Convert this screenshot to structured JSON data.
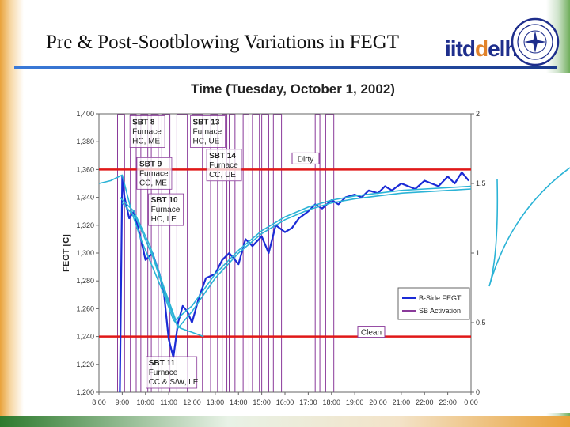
{
  "slide": {
    "title": "Pre & Post-Sootblowing Variations in FEGT",
    "brand_prefix": "iitd",
    "brand_suffix": "elhi"
  },
  "colors": {
    "fegt_line": "#1b2bd6",
    "trend_line": "#2bb3d6",
    "threshold_line": "#e01818",
    "sb_activation": "#8a3a9a"
  },
  "chart_data": {
    "type": "line",
    "title": "Time (Tuesday, October 1, 2002)",
    "ylabel": "FEGT [C]",
    "ylim": [
      1200,
      1400
    ],
    "y2lim": [
      0,
      2
    ],
    "yticks": [
      "1,200",
      "1,220",
      "1,240",
      "1,260",
      "1,280",
      "1,300",
      "1,320",
      "1,340",
      "1,360",
      "1,380",
      "1,400"
    ],
    "y2ticks": [
      "0",
      "0.5",
      "1",
      "1.5",
      "2"
    ],
    "xlim": [
      8,
      24
    ],
    "xticks": [
      "8:00",
      "9:00",
      "10:00",
      "11:00",
      "12:00",
      "13:00",
      "14:00",
      "15:00",
      "16:00",
      "17:00",
      "18:00",
      "19:00",
      "20:00",
      "21:00",
      "22:00",
      "23:00",
      "0:00"
    ],
    "legend": {
      "position": "bottom-right",
      "entries": [
        "B-Side FEGT",
        "SB Activation"
      ]
    },
    "thresholds": [
      {
        "label": "Dirty",
        "value": 1360
      },
      {
        "label": "Clean",
        "value": 1240
      }
    ],
    "sb_activations": [
      {
        "start": 8.8,
        "end": 9.1
      },
      {
        "start": 9.35,
        "end": 9.6
      },
      {
        "start": 9.8,
        "end": 10.1
      },
      {
        "start": 10.25,
        "end": 10.55
      },
      {
        "start": 10.7,
        "end": 11.05
      },
      {
        "start": 11.35,
        "end": 11.8
      },
      {
        "start": 12.0,
        "end": 12.45
      },
      {
        "start": 12.8,
        "end": 13.1
      },
      {
        "start": 13.3,
        "end": 13.5
      },
      {
        "start": 13.6,
        "end": 13.85
      },
      {
        "start": 14.2,
        "end": 14.45
      },
      {
        "start": 14.6,
        "end": 14.9
      },
      {
        "start": 15.0,
        "end": 15.3
      },
      {
        "start": 15.5,
        "end": 15.85
      },
      {
        "start": 17.3,
        "end": 17.5
      },
      {
        "start": 17.75,
        "end": 18.1
      }
    ],
    "annotations": [
      {
        "lines": [
          "SBT 8",
          "Furnace",
          "HC, ME"
        ],
        "x": 9.4,
        "y": 1398
      },
      {
        "lines": [
          "SBT 13",
          "Furnace",
          "HC, UE"
        ],
        "x": 12.0,
        "y": 1398
      },
      {
        "lines": [
          "SBT 14",
          "Furnace",
          "CC, UE"
        ],
        "x": 12.7,
        "y": 1374
      },
      {
        "lines": [
          "SBT 9",
          "Furnace",
          "CC, ME"
        ],
        "x": 9.7,
        "y": 1368
      },
      {
        "lines": [
          "SBT 10",
          "Furnace",
          "HC, LE"
        ],
        "x": 10.2,
        "y": 1342
      },
      {
        "lines": [
          "SBT 11",
          "Furnace",
          "CC & S/W, LE"
        ],
        "x": 10.1,
        "y": 1225
      }
    ],
    "series": [
      {
        "name": "B-Side FEGT",
        "x": [
          8.9,
          9.0,
          9.1,
          9.3,
          9.5,
          9.8,
          10.0,
          10.3,
          10.6,
          10.8,
          11.0,
          11.2,
          11.4,
          11.6,
          11.8,
          12.0,
          12.3,
          12.6,
          13.0,
          13.3,
          13.6,
          14.0,
          14.3,
          14.6,
          15.0,
          15.3,
          15.6,
          16.0,
          16.3,
          16.6,
          17.0,
          17.3,
          17.6,
          18.0,
          18.3,
          18.6,
          19.0,
          19.3,
          19.6,
          20.0,
          20.3,
          20.6,
          21.0,
          21.3,
          21.6,
          22.0,
          22.3,
          22.6,
          23.0,
          23.3,
          23.6,
          23.9
        ],
        "y": [
          1200,
          1355,
          1340,
          1325,
          1330,
          1310,
          1295,
          1300,
          1285,
          1270,
          1238,
          1225,
          1250,
          1262,
          1258,
          1250,
          1268,
          1282,
          1285,
          1295,
          1300,
          1292,
          1310,
          1305,
          1312,
          1300,
          1320,
          1315,
          1318,
          1325,
          1330,
          1335,
          1332,
          1338,
          1335,
          1340,
          1342,
          1340,
          1345,
          1343,
          1348,
          1345,
          1350,
          1348,
          1346,
          1352,
          1350,
          1348,
          1355,
          1350,
          1358,
          1352
        ]
      },
      {
        "name": "",
        "x": [
          8.9,
          9.5,
          10.2,
          10.8,
          11.3,
          12.0,
          13.0,
          14.0,
          15.0,
          16.0,
          17.0,
          18.0,
          19.0,
          20.0,
          21.0,
          22.0,
          23.0,
          24.0
        ],
        "y": [
          1340,
          1330,
          1305,
          1275,
          1252,
          1262,
          1285,
          1302,
          1316,
          1326,
          1333,
          1338,
          1341,
          1343,
          1345,
          1346,
          1347,
          1348
        ]
      },
      {
        "name": "",
        "x": [
          9.0,
          9.6,
          10.3,
          10.9,
          11.4,
          12.0,
          13.0,
          14.0,
          15.0,
          16.0,
          17.0,
          18.0,
          19.0,
          20.0,
          21.0,
          22.0,
          23.0,
          24.0
        ],
        "y": [
          1336,
          1325,
          1298,
          1268,
          1246,
          1258,
          1282,
          1300,
          1314,
          1324,
          1331,
          1336,
          1339,
          1341,
          1343,
          1344,
          1345,
          1346
        ]
      },
      {
        "name": "",
        "x": [
          8.0,
          8.5,
          9.0,
          9.4,
          9.8,
          10.3,
          10.8,
          11.2,
          11.5,
          12.0,
          12.5
        ],
        "y": [
          1350,
          1352,
          1356,
          1330,
          1310,
          1290,
          1270,
          1252,
          1246,
          1243,
          1240
        ]
      }
    ]
  }
}
